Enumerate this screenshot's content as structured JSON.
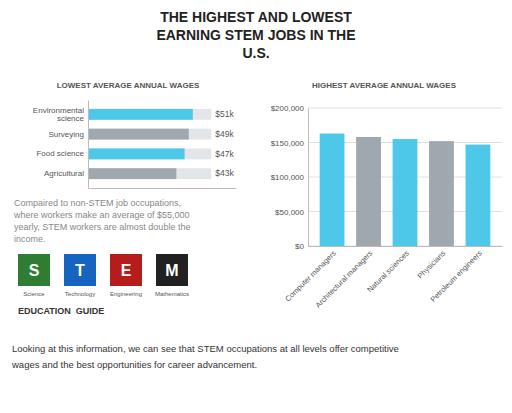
{
  "title": "THE HIGHEST AND LOWEST\nEARNING STEM JOBS IN THE\nU.S.",
  "annotations": [
    "Compaired to non-STEM job occupations,\nwhere workers make an average of $55,000\nyearly, STEM workers are almost double the\nincome.",
    "Looking at this information, we can see that STEM occupations at all levels offer competitive",
    "wages and the best opportunities for career advancement."
  ],
  "logo": {
    "letters": [
      "S",
      "T",
      "E",
      "M"
    ],
    "colors": [
      "#2e7d32",
      "#1565c0",
      "#b71c1c",
      "#212121"
    ],
    "subtitles": [
      "Science",
      "Technology",
      "Engineering",
      "Mathematics"
    ],
    "caption": "EDUCATION  GUIDE"
  },
  "chart_data": [
    {
      "type": "bar",
      "orientation": "horizontal",
      "title": "LOWEST AVERAGE ANNUAL WAGES",
      "categories": [
        "Environmental\nscience",
        "Surveying",
        "Food science",
        "Agricultural"
      ],
      "values": [
        51000,
        49000,
        47000,
        43000
      ],
      "max": 60000,
      "data_labels": true,
      "value_labels": [
        "$51k",
        "$49k",
        "$47k",
        "$43k"
      ],
      "colors": [
        "#4DC8E8",
        "#9EA8AE",
        "#4DC8E8",
        "#9EA8AE"
      ],
      "xlim": [
        0,
        72000
      ],
      "tick_labels": "y",
      "grid": false
    },
    {
      "type": "bar",
      "title": "HIGHEST AVERAGE ANNUAL WAGES",
      "categories": [
        "Computer managers",
        "Architectural managers",
        "Natural sciences",
        "Physicians",
        "Petroleum engineers"
      ],
      "values": [
        163000,
        158000,
        155000,
        152000,
        147000
      ],
      "colors": [
        "#4DC8E8",
        "#9EA8AE",
        "#4DC8E8",
        "#9EA8AE",
        "#4DC8E8"
      ],
      "ylim": [
        0,
        200000
      ],
      "yticks": [
        {
          "value": 0,
          "label": "$0"
        },
        {
          "value": 50000,
          "label": "$50,000"
        },
        {
          "value": 100000,
          "label": "$100,000"
        },
        {
          "value": 150000,
          "label": "$150,000"
        },
        {
          "value": 200000,
          "label": "$200,000"
        }
      ],
      "grid": true
    }
  ]
}
